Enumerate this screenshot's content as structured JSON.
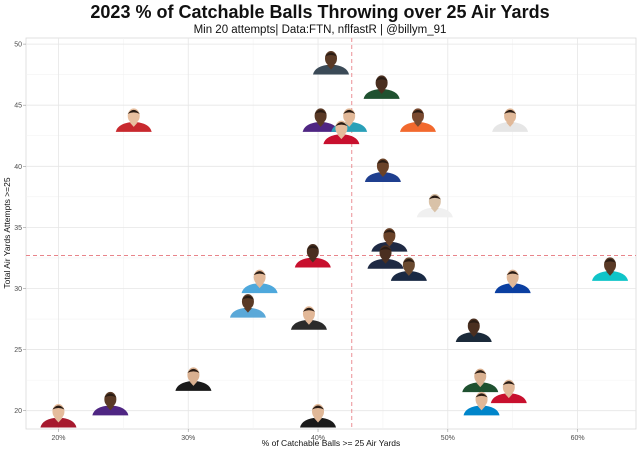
{
  "chart_data": {
    "type": "scatter",
    "title": "2023 % of Catchable Balls Throwing over 25 Air Yards",
    "subtitle": "Min 20 attempts| Data:FTN, nflfastR | @billym_91",
    "xlabel": "% of Catchable Balls >= 25 Air Yards",
    "ylabel": "Total Air Yards Attempts >=25",
    "xlim": [
      17.5,
      64.5
    ],
    "ylim": [
      18.5,
      50.5
    ],
    "x_ticks": [
      20,
      30,
      40,
      50,
      60
    ],
    "x_tick_labels": [
      "20%",
      "30%",
      "40%",
      "50%",
      "60%"
    ],
    "y_ticks": [
      20,
      25,
      30,
      35,
      40,
      45,
      50
    ],
    "y_tick_labels": [
      "20",
      "25",
      "30",
      "35",
      "40",
      "45",
      "50"
    ],
    "grid": true,
    "reference_lines": {
      "x": 42.6,
      "y": 32.7,
      "color": "#e8848a"
    },
    "marker_style": "player headshot",
    "points": [
      {
        "x": 41.0,
        "y": 48.5,
        "jersey": "#3b4a57",
        "skin": "#5a3a26"
      },
      {
        "x": 44.9,
        "y": 46.5,
        "jersey": "#1f5130",
        "skin": "#4a2f20"
      },
      {
        "x": 25.8,
        "y": 43.8,
        "jersey": "#c8292e",
        "skin": "#e8c0a0"
      },
      {
        "x": 40.2,
        "y": 43.8,
        "jersey": "#4f2683",
        "skin": "#5a3a26"
      },
      {
        "x": 42.4,
        "y": 43.8,
        "jersey": "#2aa0b8",
        "skin": "#e2b898"
      },
      {
        "x": 47.7,
        "y": 43.8,
        "jersey": "#f2692e",
        "skin": "#7a4a30"
      },
      {
        "x": 54.8,
        "y": 43.8,
        "jersey": "#e6e6e6",
        "skin": "#e0b898"
      },
      {
        "x": 41.8,
        "y": 42.8,
        "jersey": "#c8102e",
        "skin": "#e5bc9c"
      },
      {
        "x": 45.0,
        "y": 39.7,
        "jersey": "#1f3f8f",
        "skin": "#6a4228"
      },
      {
        "x": 49.0,
        "y": 36.8,
        "jersey": "#f0f0f0",
        "skin": "#d9c2a8"
      },
      {
        "x": 45.5,
        "y": 34.0,
        "jersey": "#1f2a44",
        "skin": "#6a4228"
      },
      {
        "x": 39.6,
        "y": 32.7,
        "jersey": "#c8102e",
        "skin": "#4a2f20"
      },
      {
        "x": 45.2,
        "y": 32.6,
        "jersey": "#1f2a44",
        "skin": "#4a2f20"
      },
      {
        "x": 47.0,
        "y": 31.6,
        "jersey": "#1a2a44",
        "skin": "#6a4a30"
      },
      {
        "x": 62.5,
        "y": 31.6,
        "jersey": "#10c4c8",
        "skin": "#5a3a26"
      },
      {
        "x": 55.0,
        "y": 30.6,
        "jersey": "#0b3fa1",
        "skin": "#e0b898"
      },
      {
        "x": 35.5,
        "y": 30.6,
        "jersey": "#4ea8dc",
        "skin": "#e2b898"
      },
      {
        "x": 34.6,
        "y": 28.6,
        "jersey": "#5aa8d8",
        "skin": "#5a3a26"
      },
      {
        "x": 39.3,
        "y": 27.6,
        "jersey": "#2b2b2b",
        "skin": "#e2b898"
      },
      {
        "x": 52.0,
        "y": 26.6,
        "jersey": "#1b2a3a",
        "skin": "#4a2f20"
      },
      {
        "x": 30.4,
        "y": 22.6,
        "jersey": "#1a1a1a",
        "skin": "#d9b090"
      },
      {
        "x": 52.5,
        "y": 22.5,
        "jersey": "#1f5130",
        "skin": "#d9b090"
      },
      {
        "x": 54.7,
        "y": 21.6,
        "jersey": "#c8102e",
        "skin": "#e0b898"
      },
      {
        "x": 24.0,
        "y": 20.6,
        "jersey": "#4f2683",
        "skin": "#5a3a26"
      },
      {
        "x": 52.6,
        "y": 20.6,
        "jersey": "#0085ca",
        "skin": "#e0b898"
      },
      {
        "x": 20.0,
        "y": 19.6,
        "jersey": "#a6192e",
        "skin": "#e5bc9c"
      },
      {
        "x": 40.0,
        "y": 19.6,
        "jersey": "#1a1a1a",
        "skin": "#e0b898"
      }
    ]
  }
}
